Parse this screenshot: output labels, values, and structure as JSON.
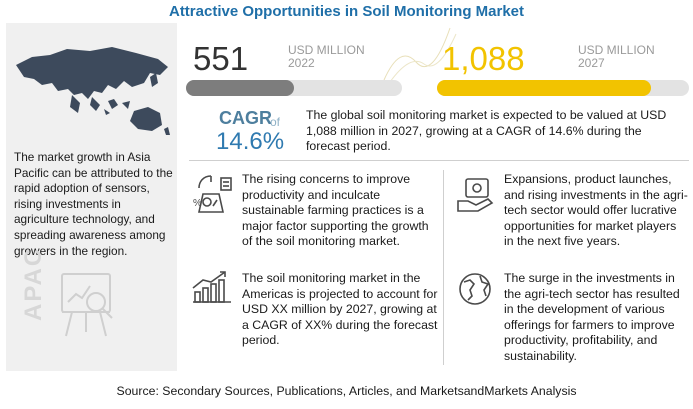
{
  "title": "Attractive Opportunities in Soil Monitoring Market",
  "left_panel": {
    "region_label": "APAC",
    "text": "The market growth in Asia Pacific can be attributed to the rapid adoption of sensors, rising investments in agriculture technology, and spreading awareness among growers in the region."
  },
  "stats": {
    "value_2022": "551",
    "unit_2022": "USD MILLION",
    "year_2022": "2022",
    "bar_2022_fraction": 0.5,
    "value_2027": "1,088",
    "unit_2027": "USD MILLION",
    "year_2027": "2027",
    "bar_2027_fraction": 0.85
  },
  "cagr": {
    "label": "CAGR",
    "of": "of",
    "value": "14.6%",
    "text": "The global soil monitoring market is expected to be valued at USD 1,088 million in 2027, growing at a CAGR of 14.6% during the forecast period."
  },
  "factors": [
    {
      "icon": "farming-analytics-icon",
      "text": "The rising concerns to improve productivity and inculcate sustainable farming practices is a major factor supporting the growth of the soil monitoring market."
    },
    {
      "icon": "money-hand-icon",
      "text": "Expansions, product launches, and rising investments in the agri-tech sector would offer lucrative opportunities for market players in the next five years."
    },
    {
      "icon": "growth-chart-icon",
      "text": "The soil monitoring market in the Americas is projected to account for USD XX million by 2027, growing at a CAGR of XX% during the forecast period."
    },
    {
      "icon": "globe-icon",
      "text": "The surge in the investments in the agri-tech sector has resulted  in the development of various offerings for farmers to improve productivity, profitability, and sustainability."
    }
  ],
  "colors": {
    "title": "#1f6fa8",
    "accent_yellow": "#f2c300",
    "bar_gray": "#7d7d7d",
    "cagr_blue": "#2f7ab0"
  },
  "source": "Source: Secondary Sources, Publications, Articles, and MarketsandMarkets Analysis"
}
